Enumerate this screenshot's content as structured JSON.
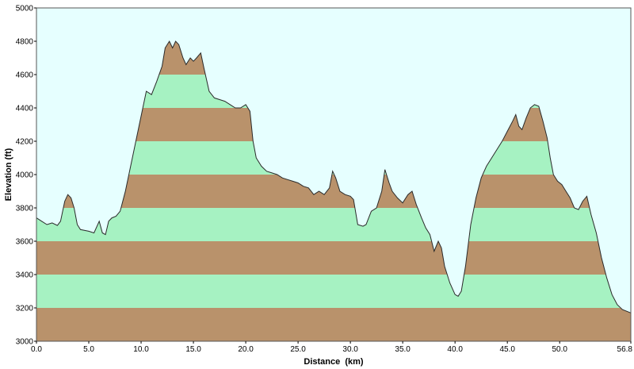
{
  "colors": {
    "background": "#ffffff",
    "plot_background": "#e6ffff",
    "band_brown": "#b9926b",
    "band_green": "#a6f2c2",
    "profile_line": "#2a2a2a",
    "border": "#555555"
  },
  "chart_data": {
    "type": "area",
    "title": "",
    "xlabel": "Distance  (km)",
    "ylabel": "Elevation (ft)",
    "xlim": [
      0,
      56.8
    ],
    "ylim": [
      3000,
      5000
    ],
    "x_ticks": [
      "0.0",
      "5.0",
      "10.0",
      "15.0",
      "20.0",
      "25.0",
      "30.0",
      "35.0",
      "40.0",
      "45.0",
      "50.0",
      "56.8"
    ],
    "x_tick_values": [
      0,
      5,
      10,
      15,
      20,
      25,
      30,
      35,
      40,
      45,
      50,
      56.8
    ],
    "y_ticks": [
      "3000",
      "3200",
      "3400",
      "3600",
      "3800",
      "4000",
      "4200",
      "4400",
      "4600",
      "4800",
      "5000"
    ],
    "y_tick_values": [
      3000,
      3200,
      3400,
      3600,
      3800,
      4000,
      4200,
      4400,
      4600,
      4800,
      5000
    ],
    "band_interval_ft": 200,
    "grid": false,
    "series": [
      {
        "name": "",
        "x": [
          0,
          0.5,
          1,
          1.5,
          2,
          2.3,
          2.7,
          3.0,
          3.3,
          3.6,
          3.9,
          4.2,
          5.0,
          5.5,
          6.0,
          6.3,
          6.6,
          6.9,
          7.2,
          7.6,
          8.0,
          8.5,
          9.0,
          9.5,
          10.0,
          10.5,
          11.0,
          11.5,
          12.0,
          12.3,
          12.7,
          13.0,
          13.3,
          13.6,
          14.0,
          14.3,
          14.7,
          15.0,
          15.3,
          15.7,
          16.0,
          16.5,
          17.0,
          17.5,
          18.0,
          18.5,
          19.0,
          19.5,
          20.0,
          20.4,
          20.7,
          21.0,
          21.5,
          22.0,
          22.5,
          23.0,
          23.5,
          24.0,
          24.5,
          25.0,
          25.5,
          26.0,
          26.5,
          27.0,
          27.5,
          28.0,
          28.3,
          28.6,
          29.0,
          29.5,
          30.0,
          30.3,
          30.7,
          31.2,
          31.5,
          32.0,
          32.5,
          33.0,
          33.3,
          33.7,
          34.0,
          34.5,
          35.0,
          35.5,
          35.9,
          36.3,
          36.8,
          37.2,
          37.6,
          38.0,
          38.4,
          38.7,
          39.0,
          39.5,
          40.0,
          40.3,
          40.6,
          41.0,
          41.5,
          42.0,
          42.5,
          43.0,
          43.5,
          44.0,
          44.5,
          45.0,
          45.5,
          45.8,
          46.1,
          46.4,
          46.8,
          47.2,
          47.6,
          48.0,
          48.4,
          48.8,
          49.1,
          49.4,
          49.8,
          50.2,
          50.6,
          51.0,
          51.4,
          51.8,
          52.2,
          52.6,
          53.0,
          53.5,
          54.0,
          54.5,
          55.0,
          55.5,
          56.0,
          56.4,
          56.8
        ],
        "y": [
          3740,
          3720,
          3700,
          3710,
          3695,
          3720,
          3840,
          3880,
          3860,
          3800,
          3700,
          3670,
          3660,
          3650,
          3720,
          3650,
          3640,
          3720,
          3740,
          3750,
          3780,
          3900,
          4050,
          4200,
          4350,
          4500,
          4480,
          4560,
          4650,
          4760,
          4800,
          4760,
          4800,
          4780,
          4700,
          4660,
          4700,
          4680,
          4700,
          4730,
          4640,
          4500,
          4460,
          4450,
          4440,
          4420,
          4400,
          4400,
          4420,
          4380,
          4200,
          4100,
          4050,
          4020,
          4010,
          4000,
          3980,
          3970,
          3960,
          3950,
          3930,
          3920,
          3880,
          3900,
          3880,
          3920,
          4020,
          3980,
          3900,
          3880,
          3870,
          3850,
          3700,
          3690,
          3700,
          3780,
          3800,
          3900,
          4030,
          3950,
          3900,
          3860,
          3830,
          3880,
          3900,
          3820,
          3740,
          3680,
          3640,
          3540,
          3600,
          3560,
          3450,
          3350,
          3280,
          3270,
          3300,
          3450,
          3700,
          3860,
          3980,
          4050,
          4100,
          4150,
          4200,
          4260,
          4320,
          4360,
          4290,
          4270,
          4340,
          4400,
          4420,
          4410,
          4320,
          4220,
          4100,
          4000,
          3960,
          3940,
          3900,
          3860,
          3800,
          3790,
          3840,
          3870,
          3760,
          3650,
          3500,
          3380,
          3280,
          3220,
          3190,
          3180,
          3170
        ]
      }
    ]
  }
}
